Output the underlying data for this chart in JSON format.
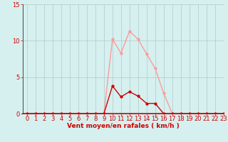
{
  "xlabel": "Vent moyen/en rafales ( km/h )",
  "background_color": "#d6f0f0",
  "grid_color": "#b0c8c8",
  "line1_x": [
    0,
    1,
    2,
    3,
    4,
    5,
    6,
    7,
    8,
    9,
    10,
    11,
    12,
    13,
    14,
    15,
    16,
    17,
    18,
    19,
    20,
    21,
    22,
    23
  ],
  "line1_y": [
    0,
    0,
    0,
    0,
    0,
    0,
    0,
    0,
    0,
    0,
    10.2,
    8.3,
    11.3,
    10.2,
    8.2,
    6.2,
    2.8,
    0,
    0,
    0,
    0,
    0,
    0,
    0
  ],
  "line2_x": [
    0,
    1,
    2,
    3,
    4,
    5,
    6,
    7,
    8,
    9,
    10,
    11,
    12,
    13,
    14,
    15,
    16,
    17,
    18,
    19,
    20,
    21,
    22,
    23
  ],
  "line2_y": [
    0,
    0,
    0,
    0,
    0,
    0,
    0,
    0,
    0,
    0,
    3.8,
    2.3,
    3.0,
    2.4,
    1.4,
    1.4,
    0,
    0,
    0,
    0,
    0,
    0,
    0,
    0
  ],
  "line1_color": "#ff9999",
  "line2_color": "#cc0000",
  "markersize": 2.5,
  "linewidth": 1.0,
  "ylim": [
    0,
    15
  ],
  "xlim": [
    -0.5,
    23
  ],
  "yticks": [
    0,
    5,
    10,
    15
  ],
  "xticks": [
    0,
    1,
    2,
    3,
    4,
    5,
    6,
    7,
    8,
    9,
    10,
    11,
    12,
    13,
    14,
    15,
    16,
    17,
    18,
    19,
    20,
    21,
    22,
    23
  ],
  "xlabel_color": "#cc0000",
  "tick_color": "#cc0000",
  "xlabel_fontsize": 6.5,
  "tick_fontsize": 6
}
